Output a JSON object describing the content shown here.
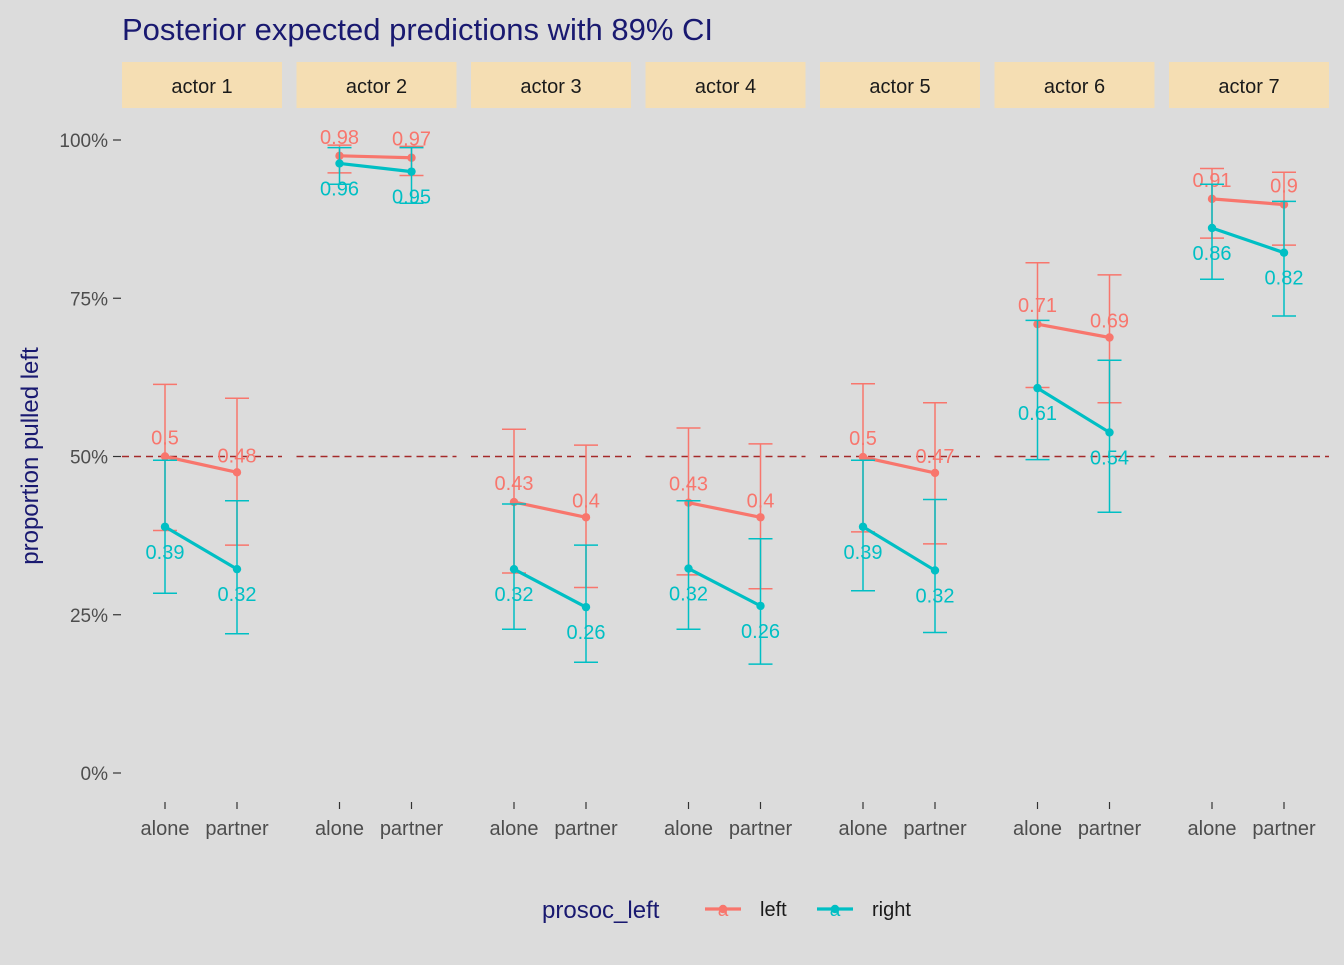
{
  "chart_data": {
    "type": "line",
    "title": "Posterior expected predictions with 89% CI",
    "xlabel": "",
    "ylabel": "proportion pulled left",
    "facets": [
      "actor 1",
      "actor 2",
      "actor 3",
      "actor 4",
      "actor 5",
      "actor 6",
      "actor 7"
    ],
    "categories": [
      "alone",
      "partner"
    ],
    "ylim": [
      -0.04,
      1.06
    ],
    "yticks": [
      0,
      0.25,
      0.5,
      0.75,
      1.0
    ],
    "ytick_labels": [
      "0%",
      "25%",
      "50%",
      "75%",
      "100%"
    ],
    "reference_line": {
      "y": 0.5,
      "style": "dashed",
      "color": "#a52a2a"
    },
    "grid": false,
    "legend": {
      "title": "prosoc_left",
      "position": "bottom",
      "key_glyph": "a"
    },
    "series": [
      {
        "name": "left",
        "color": "#f8766d",
        "label_values": [
          [
            "0.5",
            "0.48"
          ],
          [
            "0.98",
            "0.97"
          ],
          [
            "0.43",
            "0.4"
          ],
          [
            "0.43",
            "0.4"
          ],
          [
            "0.5",
            "0.47"
          ],
          [
            "0.71",
            "0.69"
          ],
          [
            "0.91",
            "0.9"
          ]
        ],
        "values": [
          [
            0.5,
            0.475
          ],
          [
            0.975,
            0.972
          ],
          [
            0.428,
            0.404
          ],
          [
            0.427,
            0.404
          ],
          [
            0.499,
            0.474
          ],
          [
            0.709,
            0.688
          ],
          [
            0.907,
            0.898
          ]
        ],
        "lower": [
          [
            0.383,
            0.36
          ],
          [
            0.948,
            0.944
          ],
          [
            0.316,
            0.293
          ],
          [
            0.313,
            0.291
          ],
          [
            0.381,
            0.362
          ],
          [
            0.609,
            0.585
          ],
          [
            0.845,
            0.834
          ]
        ],
        "upper": [
          [
            0.614,
            0.592
          ],
          [
            0.992,
            0.99
          ],
          [
            0.543,
            0.518
          ],
          [
            0.545,
            0.52
          ],
          [
            0.615,
            0.585
          ],
          [
            0.806,
            0.787
          ],
          [
            0.955,
            0.949
          ]
        ]
      },
      {
        "name": "right",
        "color": "#00bfc4",
        "label_values": [
          [
            "0.39",
            "0.32"
          ],
          [
            "0.96",
            "0.95"
          ],
          [
            "0.32",
            "0.26"
          ],
          [
            "0.32",
            "0.26"
          ],
          [
            "0.39",
            "0.32"
          ],
          [
            "0.61",
            "0.54"
          ],
          [
            "0.86",
            "0.82"
          ]
        ],
        "values": [
          [
            0.389,
            0.322
          ],
          [
            0.963,
            0.95
          ],
          [
            0.322,
            0.262
          ],
          [
            0.323,
            0.264
          ],
          [
            0.389,
            0.32
          ],
          [
            0.608,
            0.538
          ],
          [
            0.861,
            0.822
          ]
        ],
        "lower": [
          [
            0.284,
            0.22
          ],
          [
            0.93,
            0.9
          ],
          [
            0.227,
            0.175
          ],
          [
            0.227,
            0.172
          ],
          [
            0.288,
            0.222
          ],
          [
            0.495,
            0.412
          ],
          [
            0.78,
            0.722
          ]
        ],
        "upper": [
          [
            0.494,
            0.43
          ],
          [
            0.988,
            0.988
          ],
          [
            0.425,
            0.36
          ],
          [
            0.43,
            0.37
          ],
          [
            0.494,
            0.432
          ],
          [
            0.715,
            0.652
          ],
          [
            0.93,
            0.903
          ]
        ]
      }
    ]
  }
}
